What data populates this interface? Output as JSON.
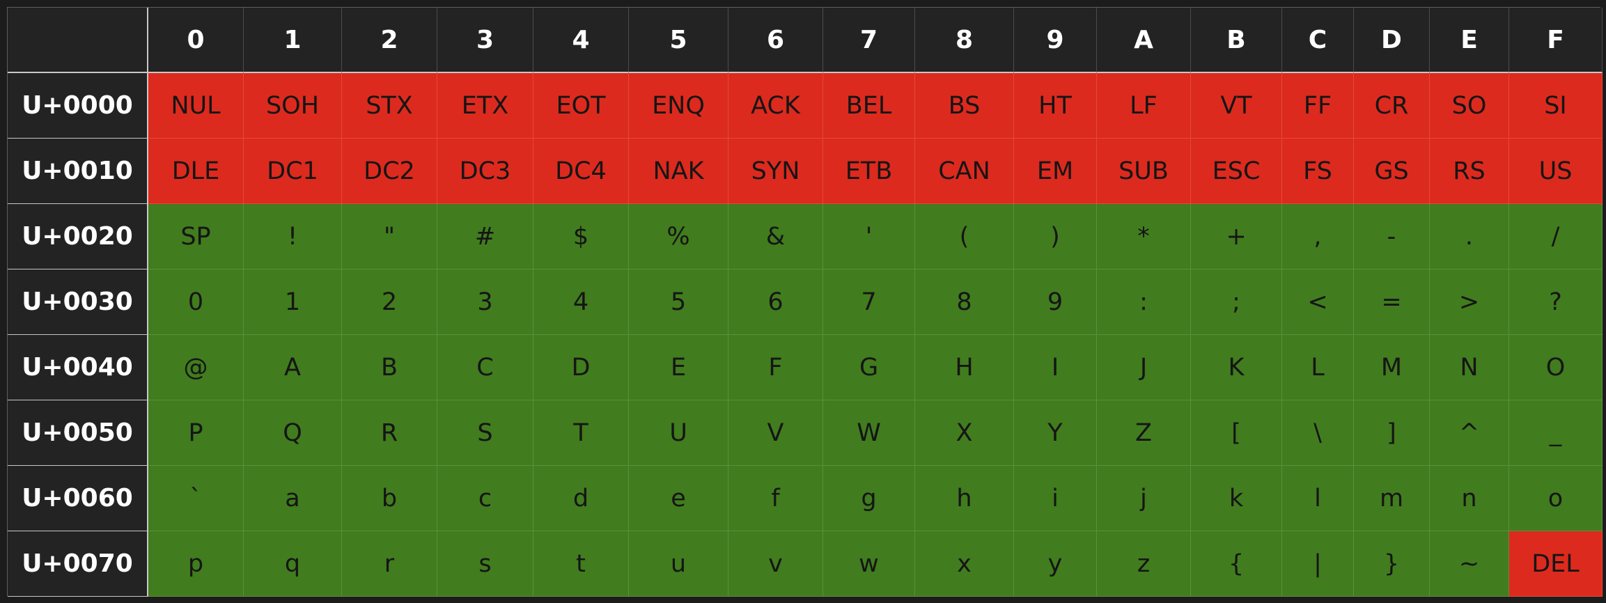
{
  "colors": {
    "control": "#dd2a1e",
    "printable": "#417c1e",
    "header_background": "#232323",
    "page_background": "#1c1c1c"
  },
  "table": {
    "column_headers": [
      "0",
      "1",
      "2",
      "3",
      "4",
      "5",
      "6",
      "7",
      "8",
      "9",
      "A",
      "B",
      "C",
      "D",
      "E",
      "F"
    ],
    "rows": [
      {
        "label": "U+0000",
        "cells": [
          {
            "text": "NUL",
            "kind": "control"
          },
          {
            "text": "SOH",
            "kind": "control"
          },
          {
            "text": "STX",
            "kind": "control"
          },
          {
            "text": "ETX",
            "kind": "control"
          },
          {
            "text": "EOT",
            "kind": "control"
          },
          {
            "text": "ENQ",
            "kind": "control"
          },
          {
            "text": "ACK",
            "kind": "control"
          },
          {
            "text": "BEL",
            "kind": "control"
          },
          {
            "text": "BS",
            "kind": "control"
          },
          {
            "text": "HT",
            "kind": "control"
          },
          {
            "text": "LF",
            "kind": "control"
          },
          {
            "text": "VT",
            "kind": "control"
          },
          {
            "text": "FF",
            "kind": "control"
          },
          {
            "text": "CR",
            "kind": "control"
          },
          {
            "text": "SO",
            "kind": "control"
          },
          {
            "text": "SI",
            "kind": "control"
          }
        ]
      },
      {
        "label": "U+0010",
        "cells": [
          {
            "text": "DLE",
            "kind": "control"
          },
          {
            "text": "DC1",
            "kind": "control"
          },
          {
            "text": "DC2",
            "kind": "control"
          },
          {
            "text": "DC3",
            "kind": "control"
          },
          {
            "text": "DC4",
            "kind": "control"
          },
          {
            "text": "NAK",
            "kind": "control"
          },
          {
            "text": "SYN",
            "kind": "control"
          },
          {
            "text": "ETB",
            "kind": "control"
          },
          {
            "text": "CAN",
            "kind": "control"
          },
          {
            "text": "EM",
            "kind": "control"
          },
          {
            "text": "SUB",
            "kind": "control"
          },
          {
            "text": "ESC",
            "kind": "control"
          },
          {
            "text": "FS",
            "kind": "control"
          },
          {
            "text": "GS",
            "kind": "control"
          },
          {
            "text": "RS",
            "kind": "control"
          },
          {
            "text": "US",
            "kind": "control"
          }
        ]
      },
      {
        "label": "U+0020",
        "cells": [
          {
            "text": "SP",
            "kind": "printable"
          },
          {
            "text": "!",
            "kind": "printable"
          },
          {
            "text": "\"",
            "kind": "printable"
          },
          {
            "text": "#",
            "kind": "printable"
          },
          {
            "text": "$",
            "kind": "printable"
          },
          {
            "text": "%",
            "kind": "printable"
          },
          {
            "text": "&",
            "kind": "printable"
          },
          {
            "text": "'",
            "kind": "printable"
          },
          {
            "text": "(",
            "kind": "printable"
          },
          {
            "text": ")",
            "kind": "printable"
          },
          {
            "text": "*",
            "kind": "printable"
          },
          {
            "text": "+",
            "kind": "printable"
          },
          {
            "text": ",",
            "kind": "printable"
          },
          {
            "text": "-",
            "kind": "printable"
          },
          {
            "text": ".",
            "kind": "printable"
          },
          {
            "text": "/",
            "kind": "printable"
          }
        ]
      },
      {
        "label": "U+0030",
        "cells": [
          {
            "text": "0",
            "kind": "printable"
          },
          {
            "text": "1",
            "kind": "printable"
          },
          {
            "text": "2",
            "kind": "printable"
          },
          {
            "text": "3",
            "kind": "printable"
          },
          {
            "text": "4",
            "kind": "printable"
          },
          {
            "text": "5",
            "kind": "printable"
          },
          {
            "text": "6",
            "kind": "printable"
          },
          {
            "text": "7",
            "kind": "printable"
          },
          {
            "text": "8",
            "kind": "printable"
          },
          {
            "text": "9",
            "kind": "printable"
          },
          {
            "text": ":",
            "kind": "printable"
          },
          {
            "text": ";",
            "kind": "printable"
          },
          {
            "text": "<",
            "kind": "printable"
          },
          {
            "text": "=",
            "kind": "printable"
          },
          {
            "text": ">",
            "kind": "printable"
          },
          {
            "text": "?",
            "kind": "printable"
          }
        ]
      },
      {
        "label": "U+0040",
        "cells": [
          {
            "text": "@",
            "kind": "printable"
          },
          {
            "text": "A",
            "kind": "printable"
          },
          {
            "text": "B",
            "kind": "printable"
          },
          {
            "text": "C",
            "kind": "printable"
          },
          {
            "text": "D",
            "kind": "printable"
          },
          {
            "text": "E",
            "kind": "printable"
          },
          {
            "text": "F",
            "kind": "printable"
          },
          {
            "text": "G",
            "kind": "printable"
          },
          {
            "text": "H",
            "kind": "printable"
          },
          {
            "text": "I",
            "kind": "printable"
          },
          {
            "text": "J",
            "kind": "printable"
          },
          {
            "text": "K",
            "kind": "printable"
          },
          {
            "text": "L",
            "kind": "printable"
          },
          {
            "text": "M",
            "kind": "printable"
          },
          {
            "text": "N",
            "kind": "printable"
          },
          {
            "text": "O",
            "kind": "printable"
          }
        ]
      },
      {
        "label": "U+0050",
        "cells": [
          {
            "text": "P",
            "kind": "printable"
          },
          {
            "text": "Q",
            "kind": "printable"
          },
          {
            "text": "R",
            "kind": "printable"
          },
          {
            "text": "S",
            "kind": "printable"
          },
          {
            "text": "T",
            "kind": "printable"
          },
          {
            "text": "U",
            "kind": "printable"
          },
          {
            "text": "V",
            "kind": "printable"
          },
          {
            "text": "W",
            "kind": "printable"
          },
          {
            "text": "X",
            "kind": "printable"
          },
          {
            "text": "Y",
            "kind": "printable"
          },
          {
            "text": "Z",
            "kind": "printable"
          },
          {
            "text": "[",
            "kind": "printable"
          },
          {
            "text": "\\",
            "kind": "printable"
          },
          {
            "text": "]",
            "kind": "printable"
          },
          {
            "text": "^",
            "kind": "printable"
          },
          {
            "text": "_",
            "kind": "printable"
          }
        ]
      },
      {
        "label": "U+0060",
        "cells": [
          {
            "text": "`",
            "kind": "printable"
          },
          {
            "text": "a",
            "kind": "printable"
          },
          {
            "text": "b",
            "kind": "printable"
          },
          {
            "text": "c",
            "kind": "printable"
          },
          {
            "text": "d",
            "kind": "printable"
          },
          {
            "text": "e",
            "kind": "printable"
          },
          {
            "text": "f",
            "kind": "printable"
          },
          {
            "text": "g",
            "kind": "printable"
          },
          {
            "text": "h",
            "kind": "printable"
          },
          {
            "text": "i",
            "kind": "printable"
          },
          {
            "text": "j",
            "kind": "printable"
          },
          {
            "text": "k",
            "kind": "printable"
          },
          {
            "text": "l",
            "kind": "printable"
          },
          {
            "text": "m",
            "kind": "printable"
          },
          {
            "text": "n",
            "kind": "printable"
          },
          {
            "text": "o",
            "kind": "printable"
          }
        ]
      },
      {
        "label": "U+0070",
        "cells": [
          {
            "text": "p",
            "kind": "printable"
          },
          {
            "text": "q",
            "kind": "printable"
          },
          {
            "text": "r",
            "kind": "printable"
          },
          {
            "text": "s",
            "kind": "printable"
          },
          {
            "text": "t",
            "kind": "printable"
          },
          {
            "text": "u",
            "kind": "printable"
          },
          {
            "text": "v",
            "kind": "printable"
          },
          {
            "text": "w",
            "kind": "printable"
          },
          {
            "text": "x",
            "kind": "printable"
          },
          {
            "text": "y",
            "kind": "printable"
          },
          {
            "text": "z",
            "kind": "printable"
          },
          {
            "text": "{",
            "kind": "printable"
          },
          {
            "text": "|",
            "kind": "printable"
          },
          {
            "text": "}",
            "kind": "printable"
          },
          {
            "text": "~",
            "kind": "printable"
          },
          {
            "text": "DEL",
            "kind": "control"
          }
        ]
      }
    ]
  }
}
